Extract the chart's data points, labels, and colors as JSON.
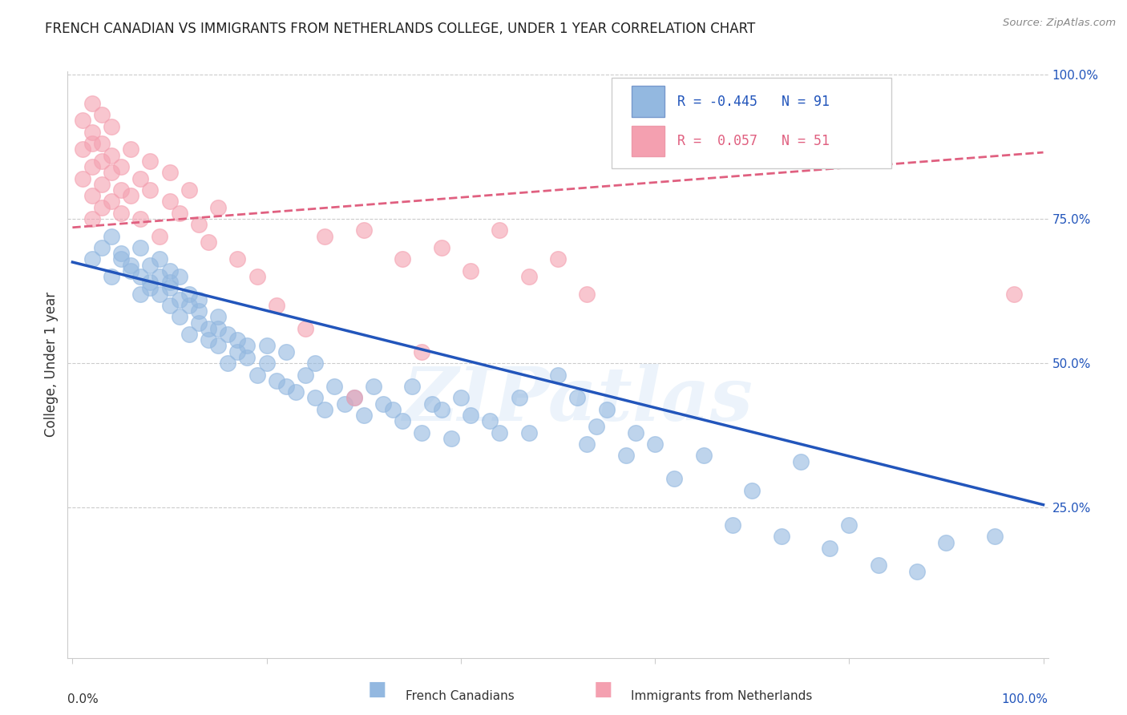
{
  "title": "FRENCH CANADIAN VS IMMIGRANTS FROM NETHERLANDS COLLEGE, UNDER 1 YEAR CORRELATION CHART",
  "source": "Source: ZipAtlas.com",
  "ylabel": "College, Under 1 year",
  "legend_blue_r": "R = -0.445",
  "legend_blue_n": "N = 91",
  "legend_pink_r": "R =  0.057",
  "legend_pink_n": "N = 51",
  "legend_label_blue": "French Canadians",
  "legend_label_pink": "Immigrants from Netherlands",
  "blue_color": "#93B8E0",
  "pink_color": "#F4A0B0",
  "blue_line_color": "#2255BB",
  "pink_line_color": "#E06080",
  "watermark": "ZIPatlas",
  "blue_scatter_x": [
    0.02,
    0.03,
    0.04,
    0.04,
    0.05,
    0.05,
    0.06,
    0.06,
    0.07,
    0.07,
    0.07,
    0.08,
    0.08,
    0.08,
    0.09,
    0.09,
    0.09,
    0.1,
    0.1,
    0.1,
    0.1,
    0.11,
    0.11,
    0.11,
    0.12,
    0.12,
    0.12,
    0.13,
    0.13,
    0.13,
    0.14,
    0.14,
    0.15,
    0.15,
    0.15,
    0.16,
    0.16,
    0.17,
    0.17,
    0.18,
    0.18,
    0.19,
    0.2,
    0.2,
    0.21,
    0.22,
    0.22,
    0.23,
    0.24,
    0.25,
    0.25,
    0.26,
    0.27,
    0.28,
    0.29,
    0.3,
    0.31,
    0.32,
    0.33,
    0.34,
    0.35,
    0.36,
    0.37,
    0.38,
    0.39,
    0.4,
    0.41,
    0.43,
    0.44,
    0.46,
    0.47,
    0.5,
    0.52,
    0.53,
    0.54,
    0.55,
    0.57,
    0.58,
    0.6,
    0.62,
    0.65,
    0.68,
    0.7,
    0.73,
    0.75,
    0.78,
    0.8,
    0.83,
    0.87,
    0.9,
    0.95
  ],
  "blue_scatter_y": [
    0.68,
    0.7,
    0.65,
    0.72,
    0.68,
    0.69,
    0.67,
    0.66,
    0.7,
    0.65,
    0.62,
    0.64,
    0.67,
    0.63,
    0.65,
    0.62,
    0.68,
    0.64,
    0.6,
    0.63,
    0.66,
    0.58,
    0.61,
    0.65,
    0.6,
    0.55,
    0.62,
    0.57,
    0.59,
    0.61,
    0.56,
    0.54,
    0.58,
    0.53,
    0.56,
    0.5,
    0.55,
    0.52,
    0.54,
    0.51,
    0.53,
    0.48,
    0.5,
    0.53,
    0.47,
    0.46,
    0.52,
    0.45,
    0.48,
    0.44,
    0.5,
    0.42,
    0.46,
    0.43,
    0.44,
    0.41,
    0.46,
    0.43,
    0.42,
    0.4,
    0.46,
    0.38,
    0.43,
    0.42,
    0.37,
    0.44,
    0.41,
    0.4,
    0.38,
    0.44,
    0.38,
    0.48,
    0.44,
    0.36,
    0.39,
    0.42,
    0.34,
    0.38,
    0.36,
    0.3,
    0.34,
    0.22,
    0.28,
    0.2,
    0.33,
    0.18,
    0.22,
    0.15,
    0.14,
    0.19,
    0.2
  ],
  "pink_scatter_x": [
    0.01,
    0.01,
    0.01,
    0.02,
    0.02,
    0.02,
    0.02,
    0.02,
    0.02,
    0.03,
    0.03,
    0.03,
    0.03,
    0.03,
    0.04,
    0.04,
    0.04,
    0.04,
    0.05,
    0.05,
    0.05,
    0.06,
    0.06,
    0.07,
    0.07,
    0.08,
    0.08,
    0.09,
    0.1,
    0.1,
    0.11,
    0.12,
    0.13,
    0.14,
    0.15,
    0.17,
    0.19,
    0.21,
    0.24,
    0.26,
    0.29,
    0.3,
    0.34,
    0.36,
    0.38,
    0.41,
    0.44,
    0.47,
    0.5,
    0.53,
    0.97
  ],
  "pink_scatter_y": [
    0.92,
    0.87,
    0.82,
    0.95,
    0.88,
    0.84,
    0.79,
    0.75,
    0.9,
    0.85,
    0.81,
    0.77,
    0.88,
    0.93,
    0.83,
    0.78,
    0.86,
    0.91,
    0.8,
    0.76,
    0.84,
    0.79,
    0.87,
    0.82,
    0.75,
    0.8,
    0.85,
    0.72,
    0.78,
    0.83,
    0.76,
    0.8,
    0.74,
    0.71,
    0.77,
    0.68,
    0.65,
    0.6,
    0.56,
    0.72,
    0.44,
    0.73,
    0.68,
    0.52,
    0.7,
    0.66,
    0.73,
    0.65,
    0.68,
    0.62,
    0.62
  ],
  "blue_line_x0": 0.0,
  "blue_line_x1": 1.0,
  "blue_line_y0": 0.675,
  "blue_line_y1": 0.255,
  "pink_line_x0": 0.0,
  "pink_line_x1": 1.0,
  "pink_line_y0": 0.735,
  "pink_line_y1": 0.865,
  "xmin": 0.0,
  "xmax": 1.0,
  "ymin": 0.0,
  "ymax": 1.0,
  "ytick_vals": [
    0.25,
    0.5,
    0.75,
    1.0
  ],
  "ytick_labels": [
    "25.0%",
    "50.0%",
    "75.0%",
    "100.0%"
  ],
  "title_fontsize": 12,
  "tick_fontsize": 11
}
